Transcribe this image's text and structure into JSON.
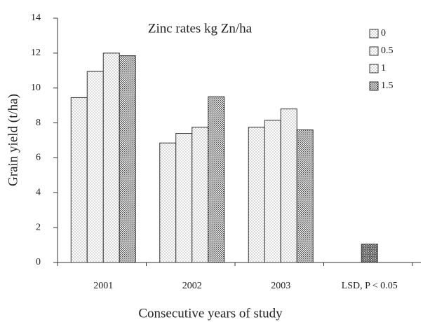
{
  "chart_data": {
    "type": "bar",
    "title": "Zinc rates kg Zn/ha",
    "y_label": "Grain yield (t/ha)",
    "x_label": "Consecutive years of study",
    "categories": [
      "2001",
      "2002",
      "2003",
      "LSD, P < 0.05"
    ],
    "series": [
      {
        "name": "0",
        "color": "#777777",
        "values": [
          9.45,
          6.85,
          7.75,
          null
        ]
      },
      {
        "name": "0.5",
        "color": "#888888",
        "values": [
          10.95,
          7.4,
          8.15,
          null
        ]
      },
      {
        "name": "1",
        "color": "#777777",
        "values": [
          12.0,
          7.75,
          8.8,
          null
        ]
      },
      {
        "name": "1.5",
        "color": "#444444",
        "values": [
          11.85,
          9.5,
          7.6,
          null
        ]
      }
    ],
    "lsd": 1.05,
    "lsd_color": "#333333",
    "ylim": [
      0,
      14
    ],
    "yticks": [
      0,
      2,
      4,
      6,
      8,
      10,
      12,
      14
    ]
  }
}
